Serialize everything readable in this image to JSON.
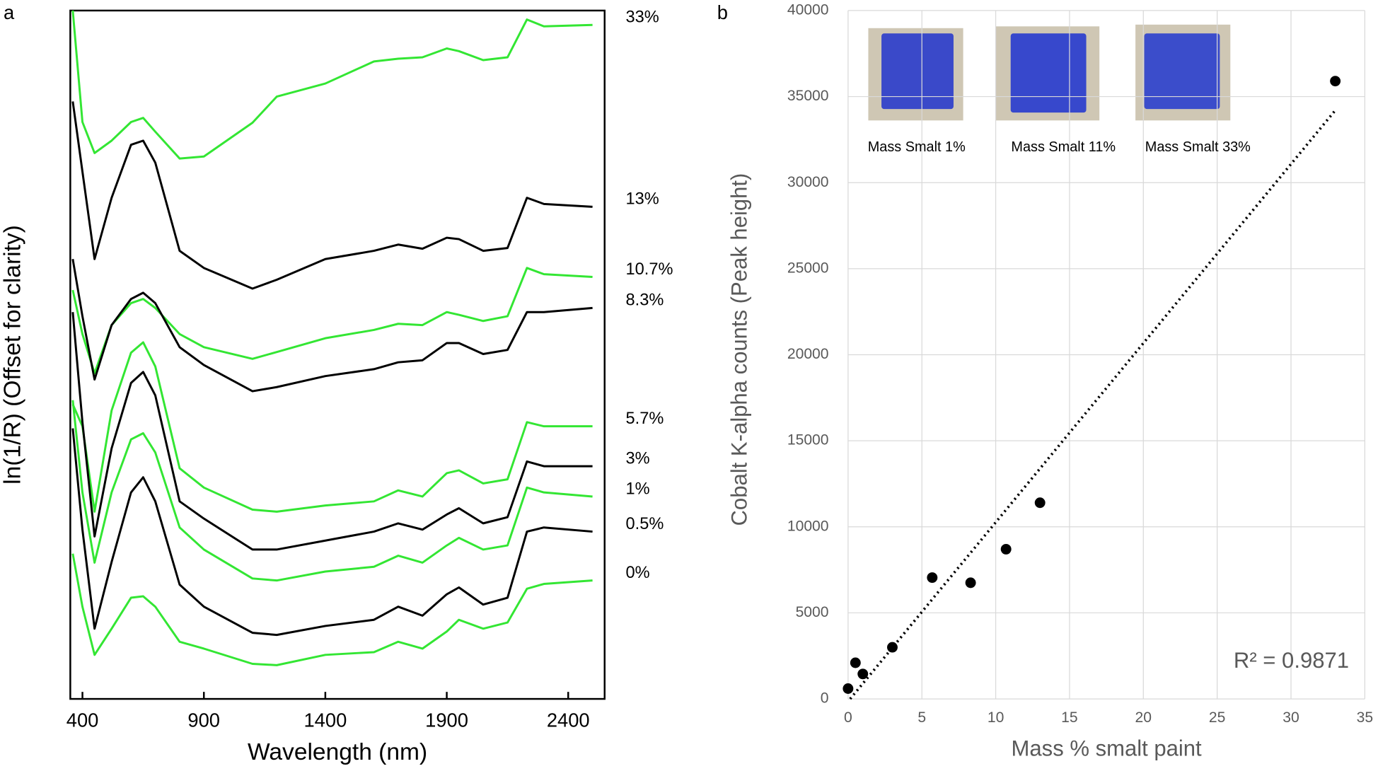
{
  "chart_data": [
    {
      "type": "line",
      "panel_label": "a",
      "x_label": "Wavelength (nm)",
      "y_label": "ln(1/R) (Offset for clarity)",
      "x": [
        360,
        400,
        450,
        520,
        600,
        650,
        700,
        800,
        900,
        1100,
        1200,
        1400,
        1600,
        1700,
        1800,
        1900,
        1950,
        2050,
        2150,
        2230,
        2300,
        2500
      ],
      "xlim": [
        350,
        2550
      ],
      "xticks": [
        400,
        900,
        1400,
        1900,
        2400
      ],
      "ylim": [
        0,
        100
      ],
      "legend": "line-end",
      "series": [
        {
          "name": "33%",
          "color": "#33e633",
          "values": [
            100,
            83.8,
            79.3,
            81.1,
            83.8,
            84.4,
            82.4,
            78.5,
            78.8,
            83.7,
            87.5,
            89.4,
            92.6,
            93.0,
            93.2,
            94.5,
            94.1,
            92.8,
            93.2,
            98.7,
            97.7,
            97.9
          ]
        },
        {
          "name": "13%",
          "color": "#000000",
          "values": [
            86.8,
            76.6,
            63.9,
            72.8,
            80.5,
            81.1,
            77.9,
            65.1,
            62.6,
            59.6,
            60.9,
            63.9,
            65.1,
            66.0,
            65.4,
            67.0,
            66.8,
            65.1,
            65.5,
            72.8,
            71.9,
            71.5
          ]
        },
        {
          "name": "10.7%",
          "color": "#33e633",
          "values": [
            59.4,
            53.0,
            47.3,
            54.3,
            57.5,
            58.1,
            56.8,
            53.0,
            51.1,
            49.4,
            50.4,
            52.4,
            53.6,
            54.5,
            54.3,
            56.2,
            55.8,
            54.9,
            55.6,
            62.6,
            61.7,
            61.3
          ]
        },
        {
          "name": "8.3%",
          "color": "#000000",
          "values": [
            63.9,
            55.6,
            46.4,
            54.3,
            58.1,
            59.0,
            57.5,
            51.1,
            48.5,
            44.7,
            45.3,
            46.9,
            47.9,
            48.9,
            49.2,
            51.7,
            51.7,
            50.1,
            50.7,
            56.2,
            56.2,
            56.8
          ]
        },
        {
          "name": "5.7%",
          "color": "#33e633",
          "values": [
            42.8,
            39.6,
            27.2,
            41.9,
            50.3,
            51.8,
            48.3,
            33.5,
            30.7,
            27.5,
            27.2,
            28.1,
            28.7,
            30.3,
            29.4,
            32.8,
            33.2,
            31.3,
            31.9,
            40.2,
            39.6,
            39.6
          ]
        },
        {
          "name": "3%",
          "color": "#000000",
          "values": [
            56.2,
            40.2,
            23.6,
            36.4,
            45.9,
            47.5,
            44.1,
            28.7,
            26.2,
            21.7,
            21.7,
            23.0,
            24.3,
            25.5,
            24.6,
            26.8,
            27.7,
            25.5,
            26.4,
            34.5,
            33.8,
            33.8
          ]
        },
        {
          "name": "1%",
          "color": "#33e633",
          "values": [
            43.4,
            30.0,
            19.8,
            30.0,
            37.7,
            38.6,
            35.8,
            24.9,
            21.7,
            17.5,
            17.2,
            18.5,
            19.2,
            20.8,
            19.8,
            22.3,
            23.4,
            21.7,
            22.3,
            30.7,
            30.0,
            29.4
          ]
        },
        {
          "name": "0.5%",
          "color": "#000000",
          "values": [
            39.3,
            24.6,
            10.2,
            19.9,
            30.0,
            32.2,
            28.7,
            16.6,
            13.4,
            9.6,
            9.3,
            10.6,
            11.5,
            13.4,
            12.1,
            15.2,
            16.2,
            13.7,
            14.7,
            24.3,
            24.9,
            24.3
          ]
        },
        {
          "name": "0%",
          "color": "#33e633",
          "values": [
            21.1,
            13.4,
            6.4,
            10.2,
            14.7,
            14.9,
            13.4,
            8.3,
            7.3,
            5.1,
            4.9,
            6.4,
            6.8,
            8.3,
            7.3,
            9.8,
            11.5,
            10.2,
            11.1,
            16.0,
            16.7,
            17.2
          ]
        }
      ]
    },
    {
      "type": "scatter",
      "panel_label": "b",
      "x_label": "Mass % smalt paint",
      "y_label": "Cobalt K-alpha counts (Peak height)",
      "x": [
        0,
        0.5,
        1,
        3,
        5.7,
        8.3,
        10.7,
        13,
        33
      ],
      "values": [
        600,
        2100,
        1450,
        3000,
        7050,
        6750,
        8700,
        11400,
        35900
      ],
      "color": "#000000",
      "trendline": true,
      "annotation": "R² = 0.9871",
      "image_captions": [
        "Mass Smalt 1%",
        "Mass Smalt 11%",
        "Mass Smalt 33%"
      ],
      "xlim": [
        0,
        35
      ],
      "xticks": [
        0,
        5,
        10,
        15,
        20,
        25,
        30,
        35
      ],
      "ylim": [
        0,
        40000
      ],
      "yticks": [
        0,
        5000,
        10000,
        15000,
        20000,
        25000,
        30000,
        35000,
        40000
      ],
      "grid": true
    }
  ]
}
